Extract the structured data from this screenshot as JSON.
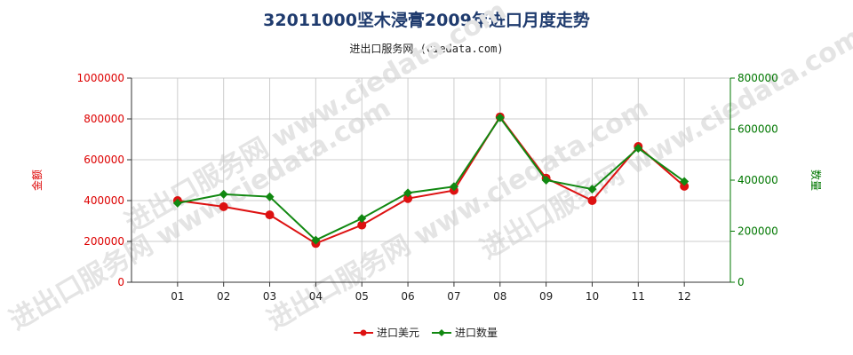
{
  "title": "32011000坚木浸膏2009年进口月度走势",
  "subtitle": "进出口服务网 (ciedata.com)",
  "watermark": "进出口服务网 www.ciedata.com",
  "colors": {
    "left_axis": "#dd0000",
    "right_axis": "#007700",
    "usd_line": "#dd1111",
    "qty_line": "#118811",
    "grid": "#cccccc"
  },
  "chart_data": {
    "type": "line",
    "categories": [
      "01",
      "02",
      "03",
      "04",
      "05",
      "06",
      "07",
      "08",
      "09",
      "10",
      "11",
      "12"
    ],
    "left_axis": {
      "label": "金额",
      "ylim": [
        0,
        1000000
      ],
      "ticks": [
        "0",
        "200000",
        "400000",
        "600000",
        "800000",
        "1000000"
      ]
    },
    "right_axis": {
      "label": "数量",
      "ylim": [
        0,
        800000
      ],
      "ticks": [
        "0",
        "200000",
        "400000",
        "600000",
        "800000"
      ]
    },
    "series": [
      {
        "name": "进口美元",
        "axis": "left",
        "marker": "circle",
        "values": [
          400000,
          370000,
          330000,
          190000,
          280000,
          410000,
          450000,
          810000,
          510000,
          400000,
          665000,
          470000
        ]
      },
      {
        "name": "进口数量",
        "axis": "right",
        "marker": "diamond",
        "values": [
          310000,
          345000,
          335000,
          165000,
          250000,
          350000,
          375000,
          645000,
          400000,
          365000,
          525000,
          395000
        ]
      }
    ],
    "grid": true,
    "legend_position": "bottom"
  }
}
